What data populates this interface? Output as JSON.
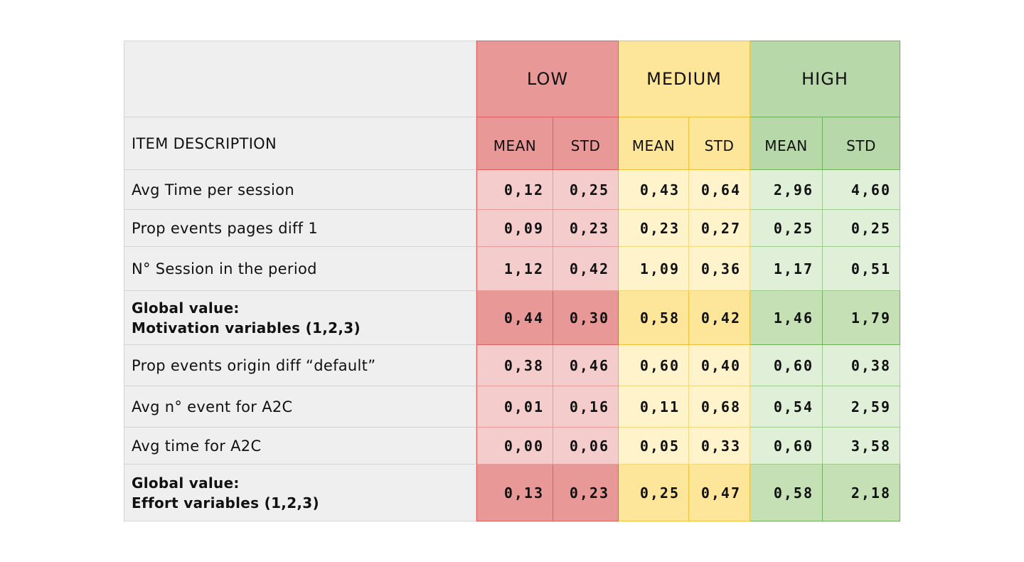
{
  "groups": [
    "LOW",
    "MEDIUM",
    "HIGH"
  ],
  "header": {
    "item_description": "ITEM DESCRIPTION",
    "mean": "MEAN",
    "std": "STD"
  },
  "rows": [
    {
      "label": "Avg Time per session",
      "values": [
        "0,12",
        "0,25",
        "0,43",
        "0,64",
        "2,96",
        "4,60"
      ]
    },
    {
      "label": "Prop events pages diff 1",
      "values": [
        "0,09",
        "0,23",
        "0,23",
        "0,27",
        "0,25",
        "0,25"
      ]
    },
    {
      "label": "N° Session in the period",
      "values": [
        "1,12",
        "0,42",
        "1,09",
        "0,36",
        "1,17",
        "0,51"
      ]
    },
    {
      "label_line1": "Global value:",
      "label_line2": "Motivation variables (1,2,3)",
      "values": [
        "0,44",
        "0,30",
        "0,58",
        "0,42",
        "1,46",
        "1,79"
      ]
    },
    {
      "label": "Prop events origin diff “default”",
      "values": [
        "0,38",
        "0,46",
        "0,60",
        "0,40",
        "0,60",
        "0,38"
      ]
    },
    {
      "label": "Avg n° event for A2C",
      "values": [
        "0,01",
        "0,16",
        "0,11",
        "0,68",
        "0,54",
        "2,59"
      ]
    },
    {
      "label": "Avg time for A2C",
      "values": [
        "0,00",
        "0,06",
        "0,05",
        "0,33",
        "0,60",
        "3,58"
      ]
    },
    {
      "label_line1": "Global value:",
      "label_line2": "Effort variables (1,2,3)",
      "values": [
        "0,13",
        "0,23",
        "0,25",
        "0,47",
        "0,58",
        "2,18"
      ]
    }
  ],
  "colors": {
    "low": "#e99898",
    "low_light": "#f5cccc",
    "medium": "#fde59a",
    "medium_light": "#fff3cc",
    "high": "#b7d8a8",
    "high_light": "#e0efd7",
    "label_bg": "#efefef"
  }
}
